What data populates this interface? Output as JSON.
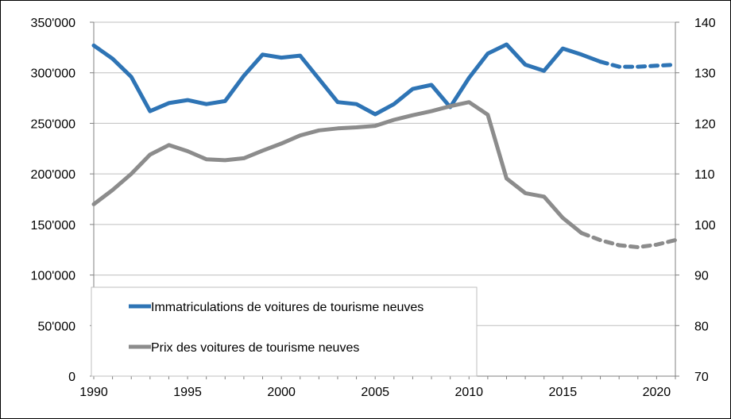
{
  "chart_data": {
    "type": "line",
    "title": "",
    "xlabel": "",
    "ylabel": "",
    "xlim": [
      1990,
      2021
    ],
    "ylim_left": [
      0,
      350000
    ],
    "ylim_right": [
      70,
      140
    ],
    "grid": true,
    "legend_position": "inside-bottom-left",
    "x_ticks": [
      1990,
      1995,
      2000,
      2005,
      2010,
      2015,
      2020
    ],
    "x_tick_labels": [
      "1990",
      "1995",
      "2000",
      "2005",
      "2010",
      "2015",
      "2020"
    ],
    "y_left_ticks": [
      0,
      50000,
      100000,
      150000,
      200000,
      250000,
      300000,
      350000
    ],
    "y_left_tick_labels": [
      "0",
      "50'000",
      "100'000",
      "150'000",
      "200'000",
      "250'000",
      "300'000",
      "350'000"
    ],
    "y_right_ticks": [
      70,
      80,
      90,
      100,
      110,
      120,
      130,
      140
    ],
    "y_right_tick_labels": [
      "70",
      "80",
      "90",
      "100",
      "110",
      "120",
      "130",
      "140"
    ],
    "series": [
      {
        "name": "Immatriculations de voitures de tourisme neuves",
        "axis": "left",
        "color": "#2e74b5",
        "actual": {
          "x": [
            1990,
            1991,
            1992,
            1993,
            1994,
            1995,
            1996,
            1997,
            1998,
            1999,
            2000,
            2001,
            2002,
            2003,
            2004,
            2005,
            2006,
            2007,
            2008,
            2009,
            2010,
            2011,
            2012,
            2013,
            2014,
            2015,
            2016,
            2017
          ],
          "y": [
            327000,
            314000,
            296000,
            262000,
            270000,
            273000,
            269000,
            272000,
            297000,
            318000,
            315000,
            317000,
            294000,
            271000,
            269000,
            259000,
            269000,
            284000,
            288000,
            266000,
            295000,
            319000,
            328000,
            308000,
            302000,
            324000,
            318000,
            311000
          ]
        },
        "forecast": {
          "x": [
            2017,
            2018,
            2019,
            2020,
            2021
          ],
          "y": [
            311000,
            306000,
            306000,
            307000,
            308000
          ]
        }
      },
      {
        "name": "Prix des voitures de tourisme neuves",
        "axis": "right",
        "color": "#8c8c8c",
        "actual": {
          "x": [
            1990,
            1991,
            1992,
            1993,
            1994,
            1995,
            1996,
            1997,
            1998,
            1999,
            2000,
            2001,
            2002,
            2003,
            2004,
            2005,
            2006,
            2007,
            2008,
            2009,
            2010,
            2011,
            2012,
            2013,
            2014,
            2015,
            2016
          ],
          "y": [
            104,
            106.8,
            110,
            113.8,
            115.7,
            114.5,
            112.9,
            112.7,
            113.1,
            114.6,
            116,
            117.6,
            118.6,
            119,
            119.2,
            119.5,
            120.7,
            121.6,
            122.4,
            123.4,
            124.2,
            121.7,
            109.1,
            106.2,
            105.5,
            101.3,
            98.3
          ]
        },
        "forecast": {
          "x": [
            2016,
            2017,
            2018,
            2019,
            2020,
            2021
          ],
          "y": [
            98.3,
            96.9,
            95.9,
            95.5,
            96,
            96.9
          ]
        }
      }
    ]
  }
}
